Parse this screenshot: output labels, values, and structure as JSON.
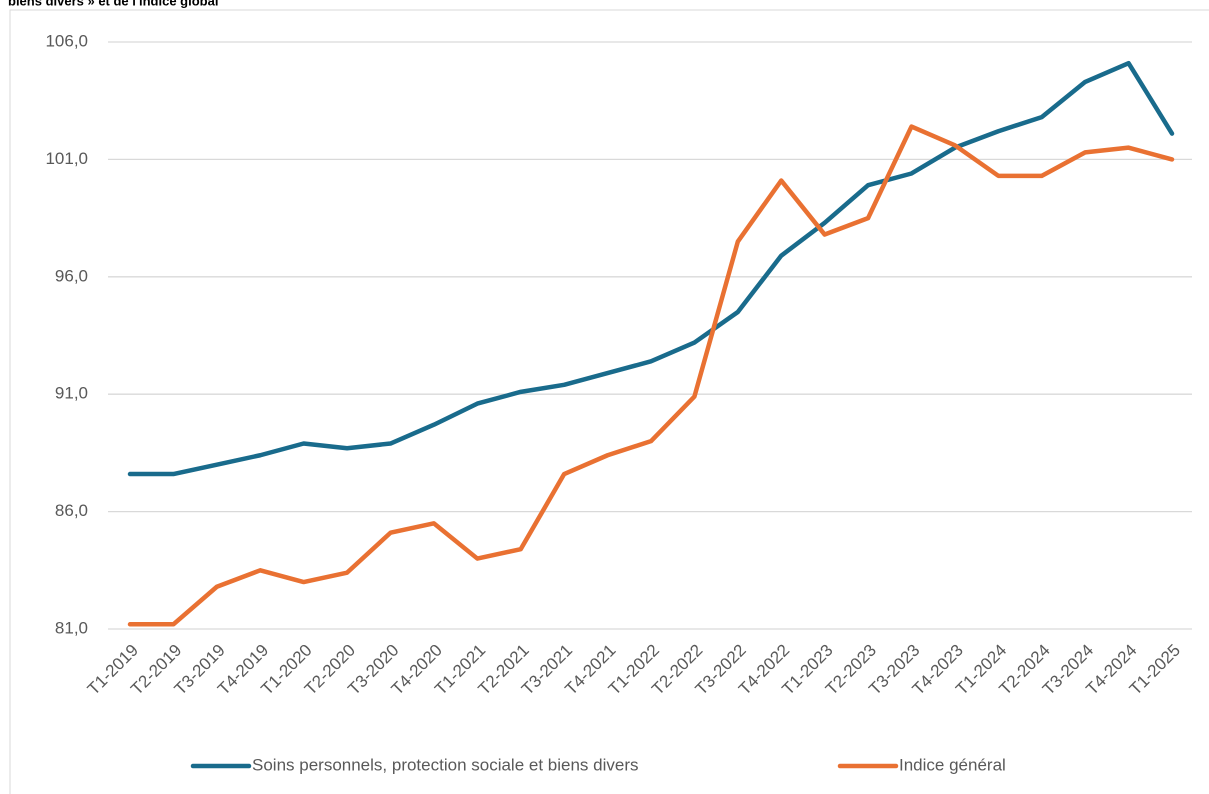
{
  "chart_data": {
    "type": "line",
    "title": "biens divers » et de l'indice global",
    "categories": [
      "T1-2019",
      "T2-2019",
      "T3-2019",
      "T4-2019",
      "T1-2020",
      "T2-2020",
      "T3-2020",
      "T4-2020",
      "T1-2021",
      "T2-2021",
      "T3-2021",
      "T4-2021",
      "T1-2022",
      "T2-2022",
      "T3-2022",
      "T4-2022",
      "T1-2023",
      "T2-2023",
      "T3-2023",
      "T4-2023",
      "T1-2024",
      "T2-2024",
      "T3-2024",
      "T4-2024",
      "T1-2025"
    ],
    "series": [
      {
        "name": "Soins personnels, protection sociale et biens divers",
        "color": "#196b8c",
        "values": [
          87.6,
          87.6,
          88.0,
          88.4,
          88.9,
          88.7,
          88.9,
          89.7,
          90.6,
          91.1,
          91.4,
          91.9,
          92.4,
          93.2,
          94.5,
          96.9,
          98.3,
          99.9,
          100.4,
          101.5,
          102.2,
          102.8,
          104.3,
          105.1,
          102.1
        ]
      },
      {
        "name": "Indice général",
        "color": "#e97132",
        "values": [
          81.2,
          81.2,
          82.8,
          83.5,
          83.0,
          83.4,
          85.1,
          85.5,
          84.0,
          84.4,
          87.6,
          88.4,
          89.0,
          90.9,
          97.5,
          100.1,
          97.8,
          98.5,
          102.4,
          101.6,
          100.3,
          100.3,
          101.3,
          101.5,
          101.0
        ]
      }
    ],
    "ylim": [
      81,
      106
    ],
    "yticks": [
      {
        "value": 81,
        "label": "81,0"
      },
      {
        "value": 86,
        "label": "86,0"
      },
      {
        "value": 91,
        "label": "91,0"
      },
      {
        "value": 96,
        "label": "96,0"
      },
      {
        "value": 101,
        "label": "101,0"
      },
      {
        "value": 106,
        "label": "106,0"
      }
    ],
    "grid": true,
    "legend": "bottom"
  }
}
